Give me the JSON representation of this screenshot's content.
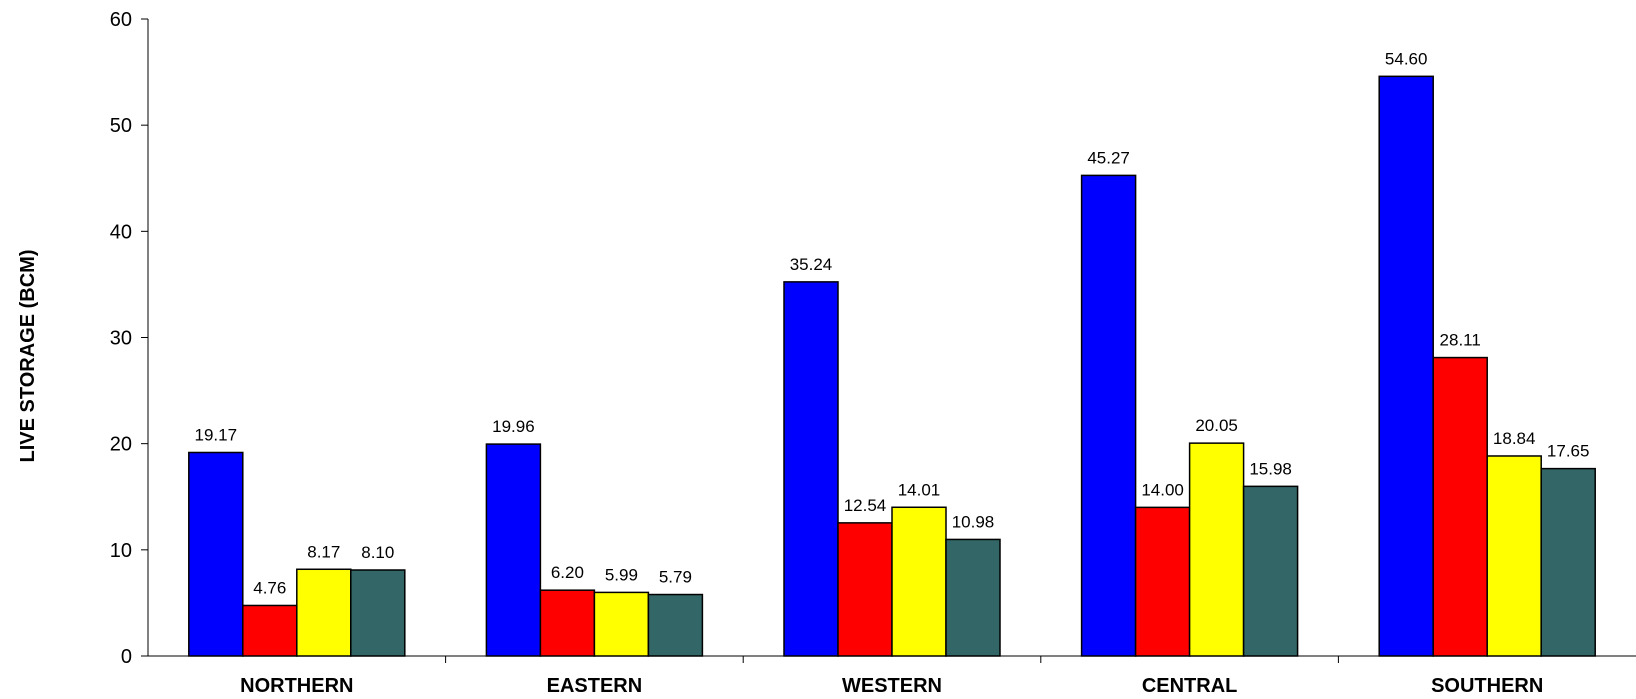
{
  "chart_data": {
    "type": "bar",
    "title": "",
    "xlabel": "",
    "ylabel": "LIVE STORAGE (BCM)",
    "ylim": [
      0,
      60
    ],
    "yticks": [
      0,
      10,
      20,
      30,
      40,
      50,
      60
    ],
    "grid": false,
    "legend": "none",
    "categories": [
      "NORTHERN",
      "EASTERN",
      "WESTERN",
      "CENTRAL",
      "SOUTHERN"
    ],
    "series": [
      {
        "color": "#0000FF",
        "values": [
          19.17,
          19.96,
          35.24,
          45.27,
          54.6
        ],
        "labels": [
          "19.17",
          "19.96",
          "35.24",
          "45.27",
          "54.60"
        ]
      },
      {
        "color": "#FF0000",
        "values": [
          4.76,
          6.2,
          12.54,
          14.0,
          28.11
        ],
        "labels": [
          "4.76",
          "6.20",
          "12.54",
          "14.00",
          "28.11"
        ]
      },
      {
        "color": "#FFFF00",
        "values": [
          8.17,
          5.99,
          14.01,
          20.05,
          18.84
        ],
        "labels": [
          "8.17",
          "5.99",
          "14.01",
          "20.05",
          "18.84"
        ]
      },
      {
        "color": "#336666",
        "values": [
          8.1,
          5.79,
          10.98,
          15.98,
          17.65
        ],
        "labels": [
          "8.10",
          "5.79",
          "10.98",
          "15.98",
          "17.65"
        ]
      }
    ]
  }
}
